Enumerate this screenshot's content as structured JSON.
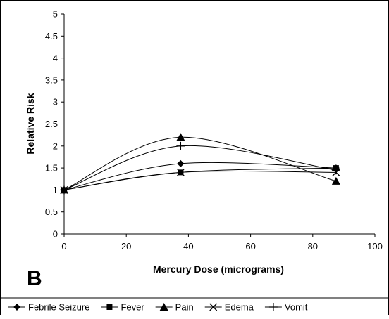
{
  "chart_data": {
    "type": "line",
    "panel_label": "B",
    "xlabel": "Mercury Dose (micrograms)",
    "ylabel": "Relative Risk",
    "xlim": [
      0,
      100
    ],
    "ylim": [
      0,
      5
    ],
    "x_ticks": [
      "0",
      "20",
      "40",
      "60",
      "80",
      "100"
    ],
    "y_ticks": [
      "0",
      "0.5",
      "1",
      "1.5",
      "2",
      "2.5",
      "3",
      "3.5",
      "4",
      "4.5",
      "5"
    ],
    "x": [
      0,
      37.5,
      87.5
    ],
    "series": [
      {
        "name": "Febrile Seizure",
        "marker": "diamond",
        "values": [
          1,
          1.6,
          1.5
        ]
      },
      {
        "name": "Fever",
        "marker": "square",
        "values": [
          1,
          1.4,
          1.5
        ]
      },
      {
        "name": "Pain",
        "marker": "triangle",
        "values": [
          1,
          2.2,
          1.2
        ]
      },
      {
        "name": "Edema",
        "marker": "x",
        "values": [
          1,
          1.4,
          1.4
        ]
      },
      {
        "name": "Vomit",
        "marker": "plus",
        "values": [
          1,
          2.0,
          1.45
        ]
      }
    ],
    "grid": false,
    "legend_position": "bottom",
    "line_color": "#000000"
  }
}
